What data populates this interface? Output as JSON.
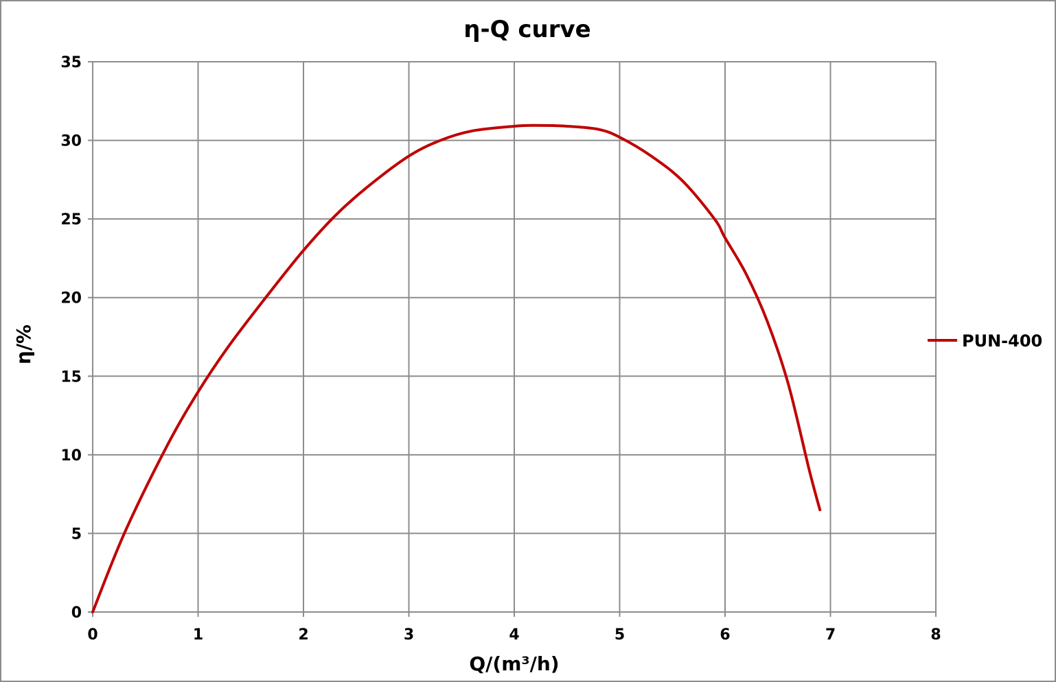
{
  "chart_data": {
    "type": "line",
    "title": "η-Q  curve",
    "xlabel": "Q/(m³/h)",
    "ylabel": "η/%",
    "xlim": [
      0,
      8
    ],
    "ylim": [
      0,
      35
    ],
    "xticks": [
      "0",
      "1",
      "2",
      "3",
      "4",
      "5",
      "6",
      "7",
      "8"
    ],
    "yticks": [
      "0",
      "5",
      "10",
      "15",
      "20",
      "25",
      "30",
      "35"
    ],
    "grid": true,
    "legend_position": "right",
    "series": [
      {
        "name": "PUN-400",
        "color": "#c00000",
        "x": [
          0,
          0.3,
          0.7,
          1.0,
          1.3,
          1.7,
          2.0,
          2.3,
          2.6,
          3.0,
          3.3,
          3.6,
          4.0,
          4.2,
          4.5,
          4.8,
          5.0,
          5.3,
          5.6,
          5.9,
          6.0,
          6.2,
          6.4,
          6.6,
          6.8,
          6.9
        ],
        "y": [
          0,
          5.0,
          10.5,
          14.0,
          17.0,
          20.5,
          23.0,
          25.2,
          27.0,
          29.0,
          30.0,
          30.6,
          30.9,
          30.95,
          30.9,
          30.7,
          30.2,
          29.0,
          27.4,
          25.0,
          23.8,
          21.5,
          18.5,
          14.5,
          9.0,
          6.5
        ]
      }
    ]
  }
}
